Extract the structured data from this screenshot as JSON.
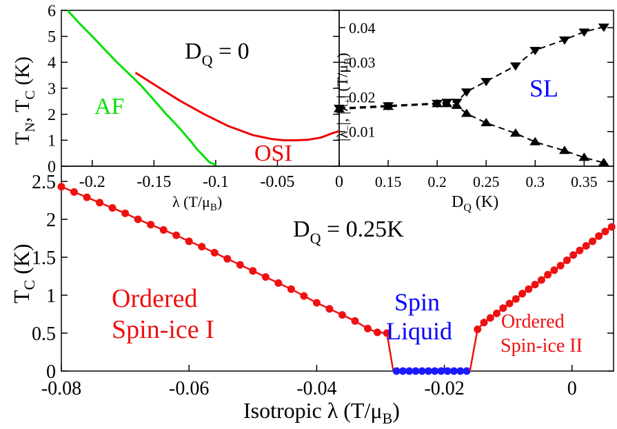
{
  "colors": {
    "af": "#00e000",
    "osi": "#ee0000",
    "ordered": "#ee1111",
    "spin_liquid": "#1a1aff",
    "sl_label": "#0000ff",
    "axis": "#000000"
  },
  "chart_data": [
    {
      "id": "top-left",
      "type": "line",
      "title": "D_Q = 0",
      "title_main": "D",
      "title_sub": "Q",
      "title_tail": " = 0",
      "xlabel": "λ (T/μB)",
      "ylabel": "TN, TC (K)",
      "xlim": [
        -0.225,
        0
      ],
      "ylim": [
        0,
        6
      ],
      "xticks": [
        -0.2,
        -0.15,
        -0.1,
        -0.05,
        0
      ],
      "xtick_labels": [
        "-0.2",
        "-0.15",
        "-0.1",
        "-0.05",
        "0"
      ],
      "yticks": [
        0,
        1,
        2,
        3,
        4,
        5,
        6
      ],
      "ytick_labels": [
        "0",
        "1",
        "2",
        "3",
        "4",
        "5",
        "6"
      ],
      "series": [
        {
          "name": "AF",
          "x": [
            -0.22,
            -0.21,
            -0.2,
            -0.19,
            -0.18,
            -0.17,
            -0.16,
            -0.15,
            -0.14,
            -0.13,
            -0.12,
            -0.115,
            -0.11,
            -0.105,
            -0.1
          ],
          "y": [
            6.0,
            5.48,
            5.0,
            4.5,
            4.0,
            3.55,
            3.08,
            2.55,
            2.0,
            1.5,
            0.95,
            0.65,
            0.4,
            0.15,
            0.05
          ]
        },
        {
          "name": "OSI",
          "x": [
            -0.165,
            -0.15,
            -0.13,
            -0.11,
            -0.09,
            -0.07,
            -0.055,
            -0.045,
            -0.035,
            -0.025,
            -0.015,
            -0.005,
            0.0
          ],
          "y": [
            3.6,
            3.15,
            2.55,
            2.02,
            1.55,
            1.2,
            1.05,
            1.0,
            1.0,
            1.02,
            1.1,
            1.28,
            1.35
          ]
        }
      ],
      "annotations": [
        "AF",
        "OSI"
      ]
    },
    {
      "id": "top-right",
      "type": "line",
      "title": "SL",
      "xlabel_main": "D",
      "xlabel_sub": "Q",
      "xlabel_tail": " (K)",
      "ylabel": "|λ−|, |λ+| (T/μB)",
      "xlim": [
        0.1,
        0.38
      ],
      "ylim": [
        0,
        0.045
      ],
      "xticks": [
        0.15,
        0.2,
        0.25,
        0.3,
        0.35
      ],
      "xtick_labels": [
        "0.15",
        "0.2",
        "0.25",
        "0.3",
        "0.35"
      ],
      "yticks": [
        0.01,
        0.02,
        0.03,
        0.04
      ],
      "ytick_labels": [
        "0.01",
        "0.02",
        "0.03",
        "0.04"
      ],
      "series": [
        {
          "name": "|λ+|",
          "marker": "triangle-down",
          "x": [
            0.1,
            0.15,
            0.2,
            0.21,
            0.22,
            0.23,
            0.25,
            0.28,
            0.3,
            0.33,
            0.35,
            0.37
          ],
          "y": [
            0.0168,
            0.0175,
            0.0182,
            0.0185,
            0.0185,
            0.0215,
            0.0245,
            0.029,
            0.0335,
            0.0365,
            0.0388,
            0.0402
          ]
        },
        {
          "name": "|λ−|",
          "marker": "triangle-up",
          "x": [
            0.1,
            0.15,
            0.2,
            0.21,
            0.22,
            0.23,
            0.25,
            0.28,
            0.3,
            0.33,
            0.35,
            0.37
          ],
          "y": [
            0.0165,
            0.0172,
            0.018,
            0.018,
            0.0175,
            0.0152,
            0.0125,
            0.0095,
            0.007,
            0.0045,
            0.0025,
            0.001
          ]
        }
      ]
    },
    {
      "id": "bottom",
      "type": "scatter",
      "title": "D_Q = 0.25K",
      "title_main": "D",
      "title_sub": "Q",
      "title_tail": " = 0.25K",
      "xlabel": "Isotropic λ (T/μB)",
      "ylabel": "TC (K)",
      "xlim": [
        -0.08,
        0.0065
      ],
      "ylim": [
        0,
        2.7
      ],
      "xticks": [
        -0.08,
        -0.06,
        -0.04,
        -0.02,
        0
      ],
      "xtick_labels": [
        "-0.08",
        "-0.06",
        "-0.04",
        "-0.02",
        "0"
      ],
      "yticks": [
        0,
        0.5,
        1,
        1.5,
        2,
        2.5
      ],
      "ytick_labels": [
        "0",
        "0.5",
        "1",
        "1.5",
        "2",
        "2.5"
      ],
      "series": [
        {
          "name": "Ordered Spin-ice I",
          "x": [
            -0.08,
            -0.078,
            -0.076,
            -0.074,
            -0.072,
            -0.07,
            -0.068,
            -0.066,
            -0.064,
            -0.062,
            -0.06,
            -0.058,
            -0.056,
            -0.054,
            -0.052,
            -0.05,
            -0.048,
            -0.046,
            -0.044,
            -0.042,
            -0.04,
            -0.038,
            -0.036,
            -0.034,
            -0.032,
            -0.0305,
            -0.029,
            -0.028
          ],
          "y": [
            2.43,
            2.36,
            2.29,
            2.22,
            2.15,
            2.08,
            2.0,
            1.93,
            1.86,
            1.79,
            1.71,
            1.64,
            1.56,
            1.48,
            1.4,
            1.32,
            1.24,
            1.16,
            1.08,
            0.99,
            0.9,
            0.82,
            0.74,
            0.66,
            0.56,
            0.51,
            0.5,
            0.0
          ]
        },
        {
          "name": "Spin Liquid",
          "x": [
            -0.0275,
            -0.0265,
            -0.0255,
            -0.0245,
            -0.0235,
            -0.0225,
            -0.0215,
            -0.0205,
            -0.0195,
            -0.0185,
            -0.0175,
            -0.0165
          ],
          "y": [
            0,
            0,
            0,
            0,
            0,
            0,
            0,
            0,
            0,
            0,
            0,
            0
          ]
        },
        {
          "name": "Ordered Spin-ice II",
          "x": [
            -0.016,
            -0.0148,
            -0.0138,
            -0.0128,
            -0.0118,
            -0.0108,
            -0.0098,
            -0.0088,
            -0.0078,
            -0.0068,
            -0.0058,
            -0.0048,
            -0.0038,
            -0.0028,
            -0.0018,
            -0.0008,
            0.0002,
            0.0012,
            0.0022,
            0.0032,
            0.0042,
            0.0052,
            0.0062
          ],
          "y": [
            0.0,
            0.55,
            0.64,
            0.7,
            0.76,
            0.83,
            0.89,
            0.95,
            1.02,
            1.08,
            1.14,
            1.2,
            1.27,
            1.33,
            1.39,
            1.46,
            1.53,
            1.59,
            1.65,
            1.71,
            1.78,
            1.84,
            1.9
          ]
        }
      ],
      "region_labels": {
        "osi1_line1": "Ordered",
        "osi1_line2": "Spin-ice I",
        "sl_line1": "Spin",
        "sl_line2": "Liquid",
        "osi2_line1": "Ordered",
        "osi2_line2": "Spin-ice II"
      }
    }
  ]
}
